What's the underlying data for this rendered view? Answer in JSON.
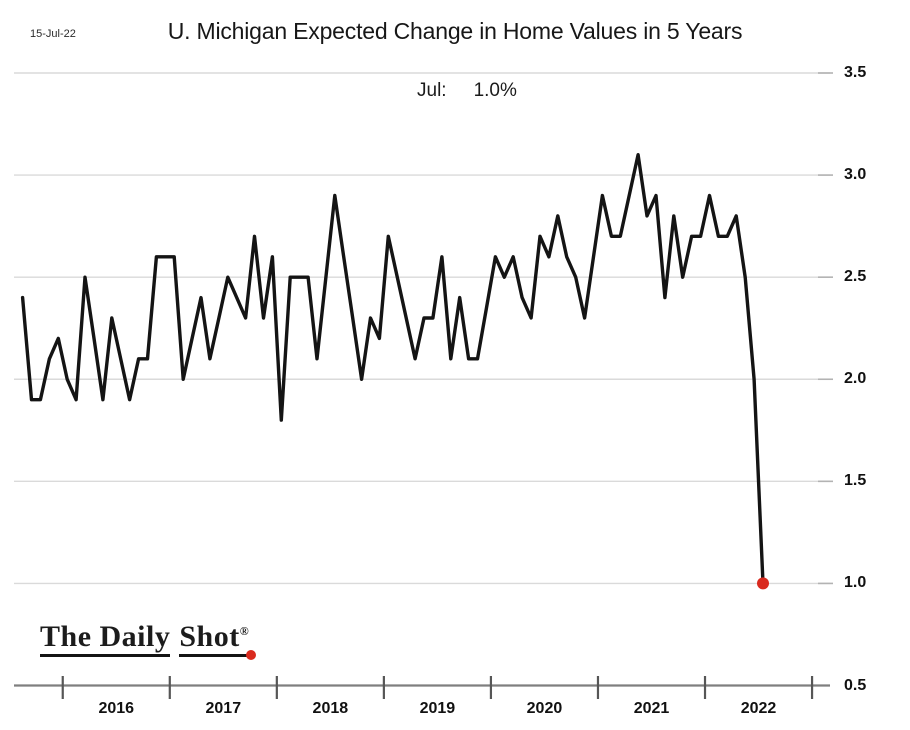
{
  "meta": {
    "date_label": "15-Jul-22"
  },
  "header": {
    "title": "U. Michigan Expected Change in Home Values in 5 Years",
    "subtitle_label": "Jul:",
    "subtitle_value": "1.0%"
  },
  "branding": {
    "part1": "The Daily",
    "part2": "Shot",
    "registered": "®"
  },
  "colors": {
    "line": "#141414",
    "marker_red": "#d92a1e",
    "gridline": "#dadada",
    "axis": "#7f7f7f",
    "tick": "#565656"
  },
  "chart_data": {
    "type": "line",
    "title": "U. Michigan Expected Change in Home Values in 5 Years",
    "annotation": {
      "label": "Jul:",
      "value": "1.0%"
    },
    "x": {
      "frequency": "monthly",
      "start": "2015-08",
      "end": "2022-07"
    },
    "year_labels": [
      "2016",
      "2017",
      "2018",
      "2019",
      "2020",
      "2021",
      "2022"
    ],
    "ylim": [
      0.5,
      3.5
    ],
    "yticks": [
      "3.5",
      "3.0",
      "2.5",
      "2.0",
      "1.5",
      "1.0",
      "0.5"
    ],
    "grid": true,
    "axis_side": "right",
    "legend": "none",
    "series": [
      {
        "name": "Expected change in home values in 5 years (%)",
        "color": "#141414",
        "values": [
          2.4,
          1.9,
          1.9,
          2.1,
          2.2,
          2.0,
          1.9,
          2.5,
          2.2,
          1.9,
          2.3,
          2.1,
          1.9,
          2.1,
          2.1,
          2.6,
          2.6,
          2.6,
          2.0,
          2.2,
          2.4,
          2.1,
          2.3,
          2.5,
          2.4,
          2.3,
          2.7,
          2.3,
          2.6,
          1.8,
          2.5,
          2.5,
          2.5,
          2.1,
          2.5,
          2.9,
          2.6,
          2.3,
          2.0,
          2.3,
          2.2,
          2.7,
          2.5,
          2.3,
          2.1,
          2.3,
          2.3,
          2.6,
          2.1,
          2.4,
          2.1,
          2.1,
          2.35,
          2.6,
          2.5,
          2.6,
          2.4,
          2.3,
          2.7,
          2.6,
          2.8,
          2.6,
          2.5,
          2.3,
          2.6,
          2.9,
          2.7,
          2.7,
          2.9,
          3.1,
          2.8,
          2.9,
          2.4,
          2.8,
          2.5,
          2.7,
          2.7,
          2.9,
          2.7,
          2.7,
          2.8,
          2.5,
          2.0,
          1.0
        ]
      }
    ],
    "last_point_marker": {
      "month": "2022-07",
      "value": 1.0,
      "color": "#d92a1e"
    }
  }
}
